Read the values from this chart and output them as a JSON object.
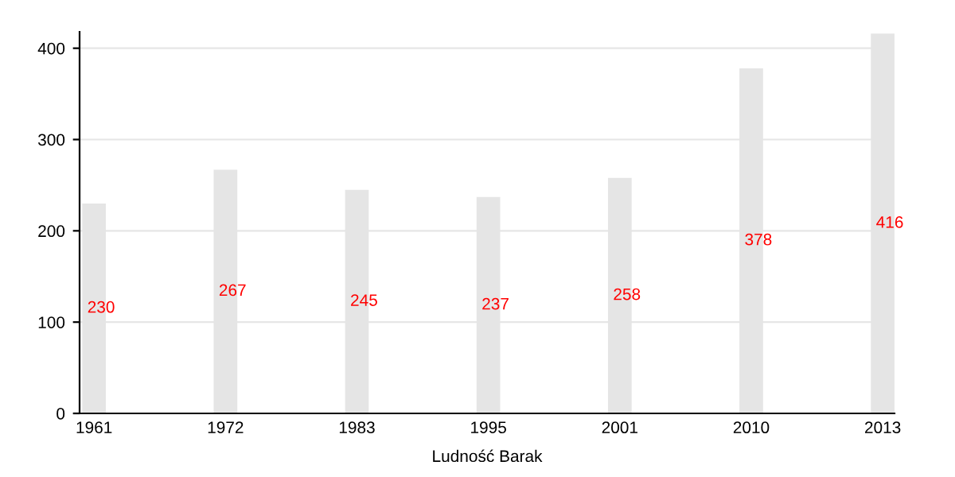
{
  "chart_data": {
    "type": "bar",
    "xlabel": "Ludność Barak",
    "categories": [
      "1961",
      "1972",
      "1983",
      "1995",
      "2001",
      "2010",
      "2013"
    ],
    "values": [
      230,
      267,
      245,
      237,
      258,
      378,
      416
    ],
    "color": "#e5e5e5",
    "ylim": [
      0,
      418
    ],
    "yticks": [
      0,
      100,
      200,
      300,
      400
    ],
    "grid": "y",
    "data_labels": true
  }
}
